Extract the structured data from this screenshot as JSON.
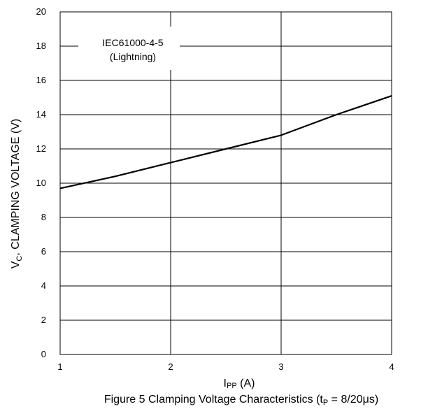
{
  "chart_data": {
    "type": "line",
    "xlabel": {
      "main": "I",
      "sub": "PP",
      "unit": " (A)"
    },
    "ylabel": {
      "main": "V",
      "sub": "C",
      "rest": ", CLAMPING VOLTAGE (V)"
    },
    "caption": {
      "pre": "Figure 5 Clamping Voltage Characteristics (t",
      "sub": "P",
      "post": " = 8/20μs)"
    },
    "annotation": {
      "line1": "IEC61000-4-5",
      "line2": "(Lightning)"
    },
    "xlim": [
      1,
      4
    ],
    "ylim": [
      0,
      20
    ],
    "x_ticks": [
      "1",
      "2",
      "3",
      "4"
    ],
    "y_ticks": [
      "0",
      "2",
      "4",
      "6",
      "8",
      "10",
      "12",
      "14",
      "16",
      "18",
      "20"
    ],
    "grid": true,
    "series": [
      {
        "x": [
          1.0,
          1.5,
          2.0,
          2.5,
          3.0,
          3.5,
          4.0
        ],
        "y": [
          9.7,
          10.4,
          11.2,
          12.0,
          12.8,
          14.0,
          15.1
        ]
      }
    ],
    "colors": {
      "line": "#000000",
      "grid": "#000000"
    }
  }
}
